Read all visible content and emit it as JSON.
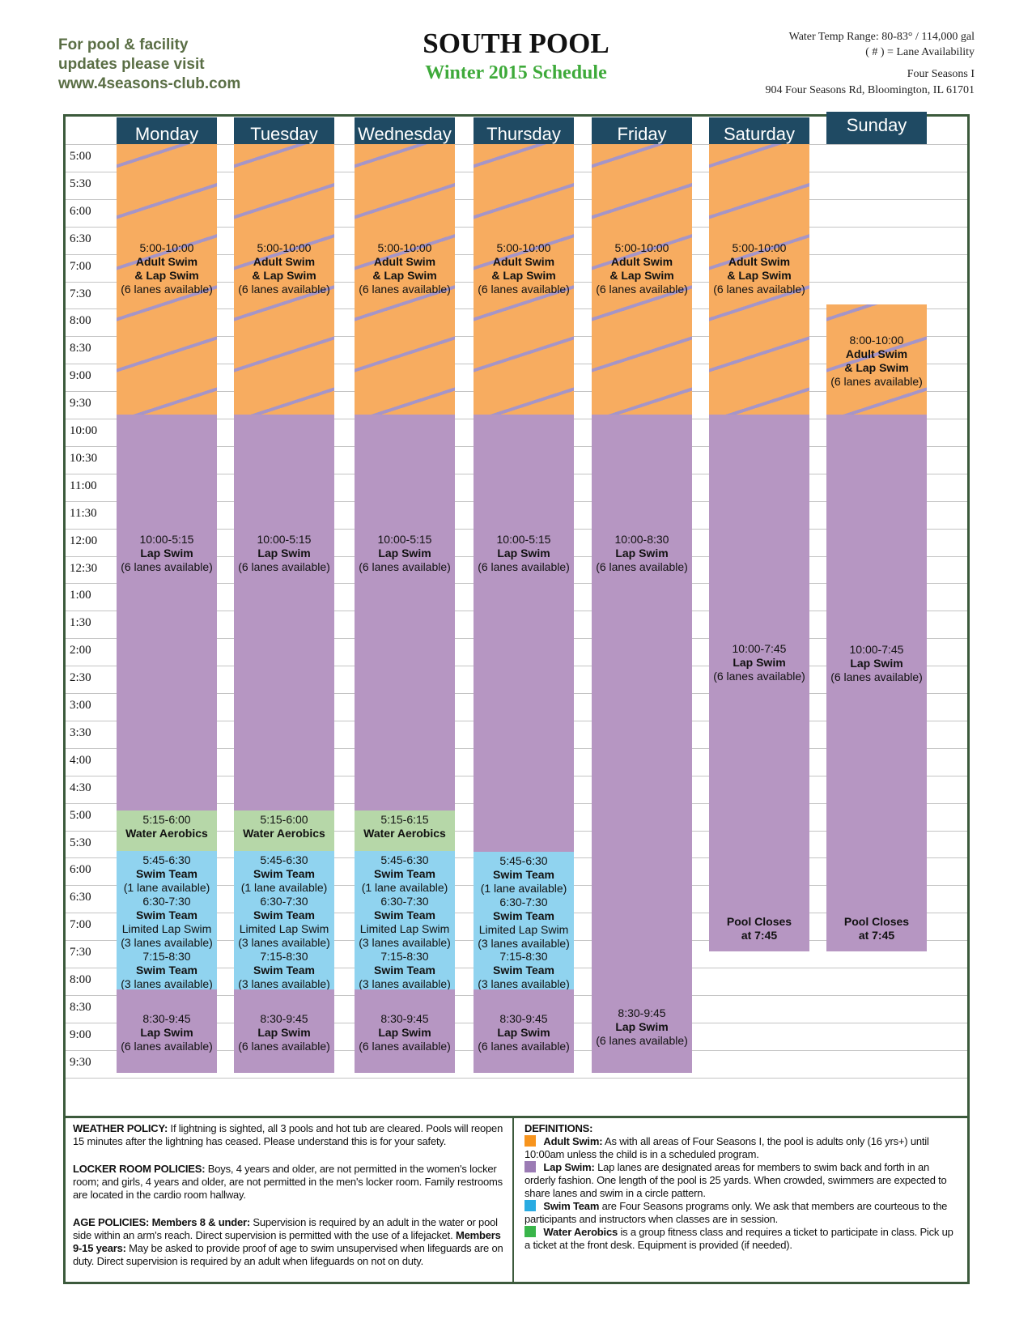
{
  "header": {
    "visit_lines": [
      "For pool & facility",
      "updates please visit",
      "www.4seasons-club.com"
    ],
    "title": "SOUTH POOL",
    "subtitle": "Winter 2015 Schedule",
    "water_temp": "Water Temp Range: 80-83° / 114,000 gal",
    "lane_note": "( # ) = Lane Availability",
    "club_name": "Four Seasons I",
    "address": "904 Four Seasons Rd, Bloomington, IL 61701"
  },
  "colors": {
    "adult_swim": "#f7ac60",
    "lap_swim": "#b696c2",
    "water_aerobics": "#b6d7a8",
    "swim_team": "#90d3ef",
    "day_header": "#1f4a63",
    "frame": "#3c5a3c"
  },
  "times": [
    "5:00",
    "5:30",
    "6:00",
    "6:30",
    "7:00",
    "7:30",
    "8:00",
    "8:30",
    "9:00",
    "9:30",
    "10:00",
    "10:30",
    "11:00",
    "11:30",
    "12:00",
    "12:30",
    "1:00",
    "1:30",
    "2:00",
    "2:30",
    "3:00",
    "3:30",
    "4:00",
    "4:30",
    "5:00",
    "5:30",
    "6:00",
    "6:30",
    "7:00",
    "7:30",
    "8:00",
    "8:30",
    "9:00",
    "9:30"
  ],
  "days": [
    {
      "name": "Monday",
      "blocks": [
        {
          "type": "adult",
          "lines": [
            "5:00-10:00",
            "Adult Swim",
            "& Lap Swim",
            "(6 lanes available)"
          ]
        },
        {
          "type": "lap",
          "lines": [
            "10:00-5:15",
            "Lap Swim",
            "(6 lanes available)"
          ]
        },
        {
          "type": "aerobics",
          "lines": [
            "5:15-6:00",
            "Water Aerobics"
          ]
        },
        {
          "type": "team",
          "lines": [
            "5:45-6:30",
            "Swim Team",
            "(1 lane available)",
            "6:30-7:30",
            "Swim Team",
            "Limited Lap Swim",
            "(3 lanes available)",
            "7:15-8:30",
            "Swim Team",
            "(3 lanes available)"
          ]
        },
        {
          "type": "lap",
          "lines": [
            "8:30-9:45",
            "Lap Swim",
            "(6 lanes available)"
          ]
        }
      ]
    },
    {
      "name": "Tuesday",
      "blocks": [
        {
          "type": "adult",
          "lines": [
            "5:00-10:00",
            "Adult Swim",
            "& Lap Swim",
            "(6 lanes available)"
          ]
        },
        {
          "type": "lap",
          "lines": [
            "10:00-5:15",
            "Lap Swim",
            "(6 lanes available)"
          ]
        },
        {
          "type": "aerobics",
          "lines": [
            "5:15-6:00",
            "Water Aerobics"
          ]
        },
        {
          "type": "team",
          "lines": [
            "5:45-6:30",
            "Swim Team",
            "(1 lane available)",
            "6:30-7:30",
            "Swim Team",
            "Limited Lap Swim",
            "(3 lanes available)",
            "7:15-8:30",
            "Swim Team",
            "(3 lanes available)"
          ]
        },
        {
          "type": "lap",
          "lines": [
            "8:30-9:45",
            "Lap Swim",
            "(6 lanes available)"
          ]
        }
      ]
    },
    {
      "name": "Wednesday",
      "blocks": [
        {
          "type": "adult",
          "lines": [
            "5:00-10:00",
            "Adult Swim",
            "& Lap Swim",
            "(6 lanes available)"
          ]
        },
        {
          "type": "lap",
          "lines": [
            "10:00-5:15",
            "Lap Swim",
            "(6 lanes available)"
          ]
        },
        {
          "type": "aerobics",
          "lines": [
            "5:15-6:15",
            "Water Aerobics"
          ]
        },
        {
          "type": "team",
          "lines": [
            "5:45-6:30",
            "Swim Team",
            "(1 lane available)",
            "6:30-7:30",
            "Swim Team",
            "Limited Lap Swim",
            "(3 lanes available)",
            "7:15-8:30",
            "Swim Team",
            "(3 lanes available)"
          ]
        },
        {
          "type": "lap",
          "lines": [
            "8:30-9:45",
            "Lap Swim",
            "(6 lanes available)"
          ]
        }
      ]
    },
    {
      "name": "Thursday",
      "blocks": [
        {
          "type": "adult",
          "lines": [
            "5:00-10:00",
            "Adult Swim",
            "& Lap Swim",
            "(6 lanes available)"
          ]
        },
        {
          "type": "lap",
          "lines": [
            "10:00-5:15",
            "Lap Swim",
            "(6 lanes available)"
          ]
        },
        {
          "type": "team",
          "lines": [
            "5:45-6:30",
            "Swim Team",
            "(1 lane available)",
            "6:30-7:30",
            "Swim Team",
            "Limited Lap Swim",
            "(3 lanes available)",
            "7:15-8:30",
            "Swim Team",
            "(3 lanes available)"
          ]
        },
        {
          "type": "lap",
          "lines": [
            "8:30-9:45",
            "Lap Swim",
            "(6 lanes available)"
          ]
        }
      ]
    },
    {
      "name": "Friday",
      "blocks": [
        {
          "type": "adult",
          "lines": [
            "5:00-10:00",
            "Adult Swim",
            "& Lap Swim",
            "(6 lanes available)"
          ]
        },
        {
          "type": "lap",
          "lines": [
            "10:00-8:30",
            "Lap Swim",
            "(6 lanes available)",
            "8:30-9:45",
            "Lap Swim",
            "(6 lanes available)"
          ]
        }
      ]
    },
    {
      "name": "Saturday",
      "blocks": [
        {
          "type": "adult",
          "lines": [
            "5:00-10:00",
            "Adult Swim",
            "& Lap Swim",
            "(6 lanes available)"
          ]
        },
        {
          "type": "lap",
          "lines": [
            "10:00-7:45",
            "Lap Swim",
            "(6 lanes available)",
            "Pool Closes",
            "at 7:45"
          ]
        }
      ]
    },
    {
      "name": "Sunday",
      "blocks": [
        {
          "type": "adult",
          "lines": [
            "8:00-10:00",
            "Adult Swim",
            "& Lap Swim",
            "(6 lanes available)"
          ]
        },
        {
          "type": "lap",
          "lines": [
            "10:00-7:45",
            "Lap Swim",
            "(6 lanes available)",
            "Pool Closes",
            "at 7:45"
          ]
        }
      ]
    }
  ],
  "policies": {
    "weather_title": "WEATHER POLICY:",
    "weather_text": "If lightning is sighted, all 3 pools and hot tub are cleared. Pools will reopen 15 minutes after the lightning has ceased. Please understand this is for your safety.",
    "locker_title": "LOCKER ROOM POLICIES:",
    "locker_text": "Boys, 4 years and older, are not permitted in the women's locker room; and girls, 4 years and older, are not permitted in the men's locker room. Family restrooms are located in the cardio room hallway.",
    "age_title": "AGE POLICIES:  Members 8 & under:",
    "age_text1": "Supervision is required by an adult in the water or pool side within an arm's reach. Direct supervision is permitted with the use of a lifejacket.",
    "age_title2": "Members 9-15 years:",
    "age_text2": "May be asked to provide proof of age to swim unsupervised when lifeguards are on duty. Direct supervision is required by an adult when lifeguards on not on duty."
  },
  "definitions": {
    "title": "DEFINITIONS:",
    "items": [
      {
        "term": "Adult Swim:",
        "text": "As with all areas of Four Seasons I, the pool is adults only (16 yrs+) until 10:00am unless the child is in a scheduled program.",
        "color": "#f7941d"
      },
      {
        "term": "Lap Swim:",
        "text": "Lap lanes are designated areas for members to swim back and forth in an orderly fashion. One length of the pool is 25 yards. When crowded, swimmers are expected to share lanes and swim in a circle pattern.",
        "color": "#9b7bb4"
      },
      {
        "term": "Swim Team",
        "text": "are Four Seasons programs only. We ask that members are courteous to the participants and instructors when classes are in session.",
        "color": "#29abe2"
      },
      {
        "term": "Water Aerobics",
        "text": "is a group fitness class and requires a ticket to participate in class. Pick up a ticket at the front desk. Equipment is provided (if needed).",
        "color": "#39b54a"
      }
    ]
  }
}
